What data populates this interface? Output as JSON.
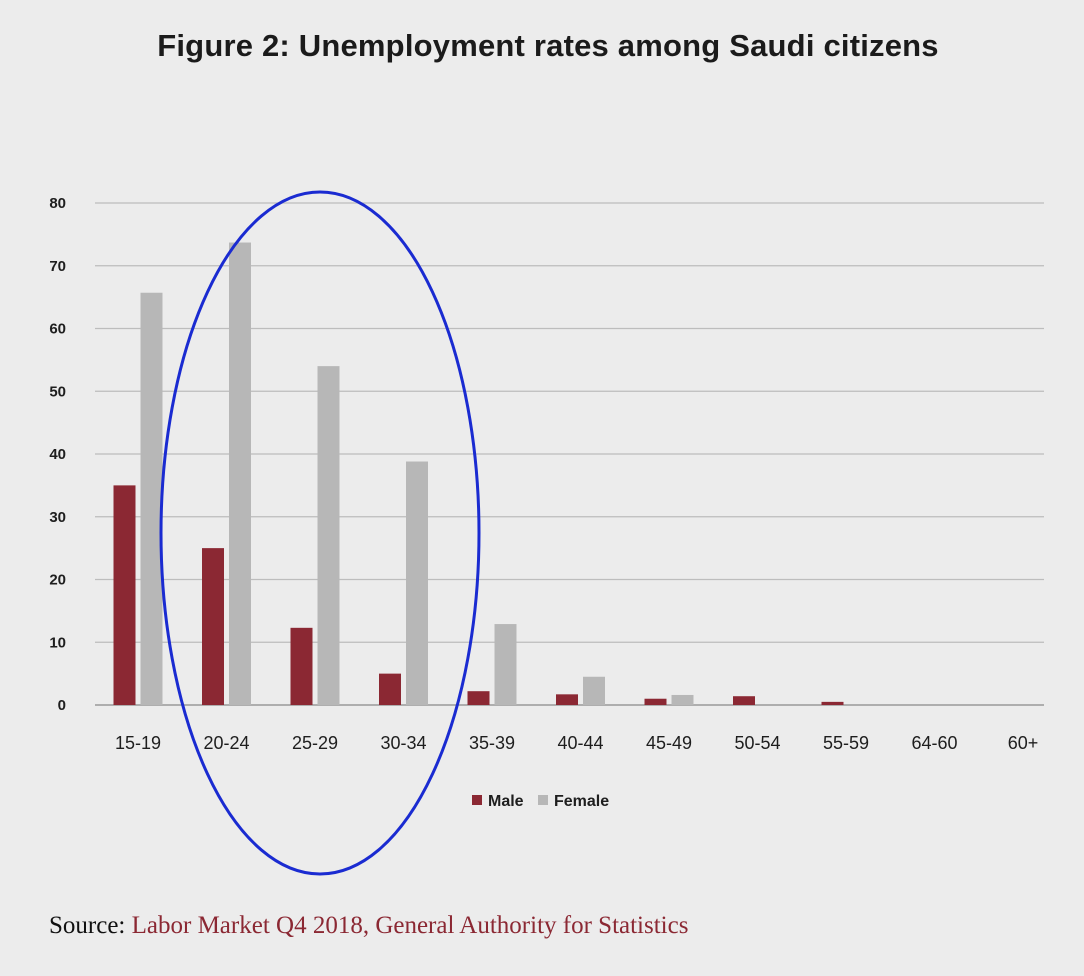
{
  "title": "Figure 2: Unemployment rates among Saudi citizens",
  "source": {
    "prefix": "Source:",
    "link_text": "Labor Market Q4 2018, General Authority for Statistics"
  },
  "colors": {
    "male": "#8b2833",
    "female": "#b7b7b7",
    "highlight_ellipse": "#1a2bd1",
    "link": "#8b2833"
  },
  "chart_data": {
    "type": "bar",
    "title": "Figure 2: Unemployment rates among Saudi citizens",
    "xlabel": "",
    "ylabel": "",
    "ylim": [
      0,
      80
    ],
    "yticks": [
      0,
      10,
      20,
      30,
      40,
      50,
      60,
      70,
      80
    ],
    "grid": true,
    "legend_position": "bottom-center",
    "categories": [
      "15-19",
      "20-24",
      "25-29",
      "30-34",
      "35-39",
      "40-44",
      "45-49",
      "50-54",
      "55-59",
      "64-60",
      "60+"
    ],
    "series": [
      {
        "name": "Male",
        "values": [
          35,
          25,
          12.3,
          5,
          2.2,
          1.7,
          1,
          1.4,
          0.5,
          0,
          0
        ]
      },
      {
        "name": "Female",
        "values": [
          65.7,
          73.7,
          54,
          38.8,
          12.9,
          4.5,
          1.6,
          0,
          0,
          0,
          0
        ]
      }
    ],
    "annotations": [
      {
        "type": "ellipse",
        "description": "highlight",
        "covers_categories": [
          "20-24",
          "25-29",
          "30-34"
        ]
      }
    ]
  }
}
